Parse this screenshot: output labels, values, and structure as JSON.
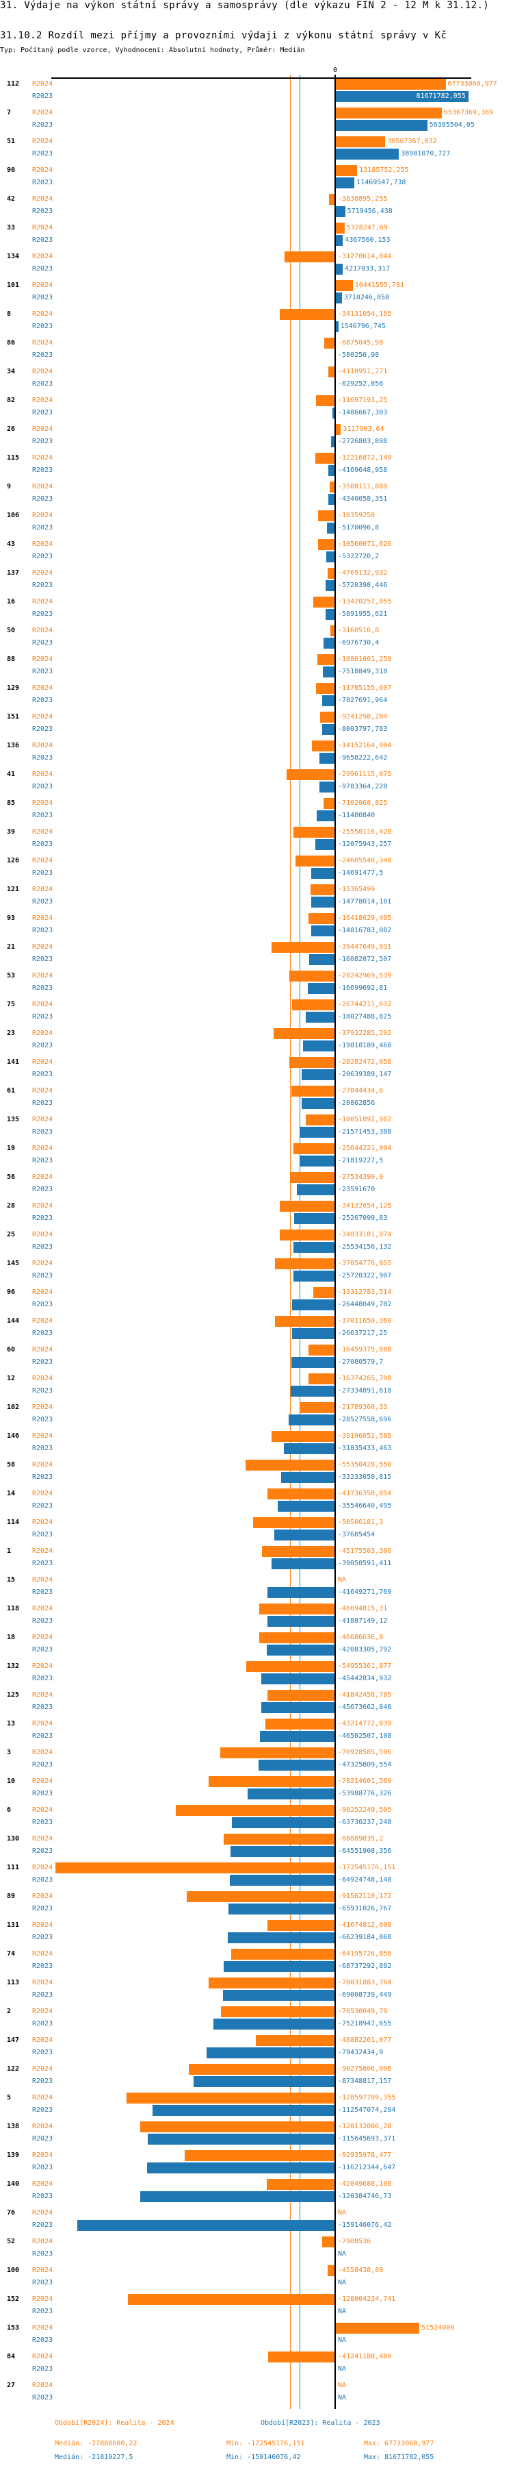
{
  "title": "31. Výdaje na výkon státní správy a samosprávy (dle výkazu FIN 2 - 12 M k 31.12.)",
  "subtitle": "31.10.2 Rozdíl mezi příjmy a provozními výdaji z výkonu státní správy v Kč",
  "typ": "Typ: Počítaný podle vzorce, Vyhodnocení: Absolutní hodnoty, Průměr: Medián",
  "colors": {
    "R2024": "#ff7f0e",
    "R2023": "#1f77b4"
  },
  "chart_data": {
    "type": "bar",
    "orientation": "horizontal",
    "zero_label": "0",
    "series": [
      {
        "name": "R2024",
        "color": "#ff7f0e"
      },
      {
        "name": "R2023",
        "color": "#1f77b4"
      }
    ],
    "na_label": "NA",
    "rows": [
      [
        "112",
        "67733060,977",
        "81671782,055"
      ],
      [
        "7",
        "65367369,369",
        "56385504,05"
      ],
      [
        "51",
        "30567367,032",
        "38901070,727"
      ],
      [
        "90",
        "13185752,255",
        "11469547,738"
      ],
      [
        "42",
        "-3838895,255",
        "5719456,438"
      ],
      [
        "33",
        "5328247,69",
        "4367560,153"
      ],
      [
        "134",
        "-31270614,044",
        "4217033,317"
      ],
      [
        "101",
        "10441555,781",
        "3710246,058"
      ],
      [
        "8",
        "-34131054,165",
        "1546796,745"
      ],
      [
        "86",
        "-6875045,98",
        "-580250,98"
      ],
      [
        "34",
        "-4110951,771",
        "-629252,856"
      ],
      [
        "82",
        "-11697193,25",
        "-1486667,303"
      ],
      [
        "26",
        "3117903,64",
        "-2726803,898"
      ],
      [
        "115",
        "-12216872,149",
        "-4169648,958"
      ],
      [
        "9",
        "-3508111,889",
        "-4340058,351"
      ],
      [
        "106",
        "-10359250",
        "-5170096,8"
      ],
      [
        "43",
        "-10560071,626",
        "-5322720,2"
      ],
      [
        "137",
        "-4769132,932",
        "-5720398,446"
      ],
      [
        "16",
        "-13420257,055",
        "-5891955,621"
      ],
      [
        "50",
        "-3160516,8",
        "-6976730,4"
      ],
      [
        "88",
        "-10801001,259",
        "-7518849,318"
      ],
      [
        "129",
        "-11785155,607",
        "-7827691,964"
      ],
      [
        "151",
        "-9241298,284",
        "-8003797,783"
      ],
      [
        "136",
        "-14152164,904",
        "-9658222,642"
      ],
      [
        "41",
        "-29961115,075",
        "-9783364,228"
      ],
      [
        "85",
        "-7102068,825",
        "-11480840"
      ],
      [
        "39",
        "-25550116,428",
        "-12075943,257"
      ],
      [
        "126",
        "-24605540,348",
        "-14691477,5"
      ],
      [
        "121",
        "-15365499",
        "-14778014,181"
      ],
      [
        "93",
        "-16418629,495",
        "-14816783,082"
      ],
      [
        "21",
        "-39447649,931",
        "-16082072,507"
      ],
      [
        "53",
        "-28242969,539",
        "-16699692,81"
      ],
      [
        "75",
        "-26744211,632",
        "-18027488,825"
      ],
      [
        "23",
        "-37932285,292",
        "-19810189,468"
      ],
      [
        "141",
        "-28282472,058",
        "-20639389,147"
      ],
      [
        "61",
        "-27044434,6",
        "-20862856"
      ],
      [
        "135",
        "-18051092,982",
        "-21571453,388"
      ],
      [
        "19",
        "-25644221,094",
        "-21819227,5"
      ],
      [
        "56",
        "-27534390,9",
        "-23591670"
      ],
      [
        "28",
        "-34132654,125",
        "-25267099,83"
      ],
      [
        "25",
        "-34033101,974",
        "-25534156,132"
      ],
      [
        "145",
        "-37054776,955",
        "-25720322,907"
      ],
      [
        "96",
        "-13312783,514",
        "-26448049,782"
      ],
      [
        "144",
        "-37011650,369",
        "-26637217,25"
      ],
      [
        "60",
        "-16459375,888",
        "-27080579,7"
      ],
      [
        "12",
        "-16374265,708",
        "-27334891,618"
      ],
      [
        "102",
        "-21789360,33",
        "-28527558,696"
      ],
      [
        "146",
        "-39196052,585",
        "-31835433,463"
      ],
      [
        "58",
        "-55350428,558",
        "-33233050,815"
      ],
      [
        "14",
        "-41736350,054",
        "-35546640,495"
      ],
      [
        "114",
        "-50506181,3",
        "-37605454"
      ],
      [
        "1",
        "-45175503,306",
        "-39050591,411"
      ],
      [
        "15",
        null,
        "-41649271,769"
      ],
      [
        "118",
        "-46694815,31",
        "-41887149,12"
      ],
      [
        "18",
        "-46686636,8",
        "-42083305,792"
      ],
      [
        "132",
        "-54955361,877",
        "-45442834,932"
      ],
      [
        "125",
        "-41842458,785",
        "-45673662,848"
      ],
      [
        "13",
        "-43214772,039",
        "-46502507,108"
      ],
      [
        "3",
        "-70928585,596",
        "-47325809,554"
      ],
      [
        "10",
        "-78214601,569",
        "-53988776,326"
      ],
      [
        "6",
        "-98252249,505",
        "-63736237,248"
      ],
      [
        "130",
        "-68889835,2",
        "-64551908,356"
      ],
      [
        "111",
        "-172545176,151",
        "-64924748,148"
      ],
      [
        "89",
        "-91562110,172",
        "-65931026,767"
      ],
      [
        "131",
        "-41674812,609",
        "-66239184,868"
      ],
      [
        "74",
        "-64195726,858",
        "-68737292,892"
      ],
      [
        "113",
        "-78031883,764",
        "-69008739,449"
      ],
      [
        "2",
        "-70530049,79",
        "-75218947,655"
      ],
      [
        "147",
        "-48882261,077",
        "-79432434,9"
      ],
      [
        "122",
        "-90275806,096",
        "-87348817,157"
      ],
      [
        "5",
        "-128597709,355",
        "-112547074,294"
      ],
      [
        "138",
        "-120132086,28",
        "-115645693,371"
      ],
      [
        "139",
        "-92935978,477",
        "-116212344,647"
      ],
      [
        "140",
        "-42049688,108",
        "-120384746,73"
      ],
      [
        "76",
        null,
        "-159146076,42"
      ],
      [
        "52",
        "-7908536",
        null
      ],
      [
        "100",
        "-4558438,89",
        null
      ],
      [
        "152",
        "-128004234,741",
        null
      ],
      [
        "153",
        "51524000",
        null
      ],
      [
        "84",
        "-41241188,489",
        null
      ],
      [
        "27",
        null,
        null
      ]
    ],
    "medians": {
      "R2024": "-27888680,22",
      "R2023": "-21819227,5"
    }
  },
  "legend": {
    "r2024": "Období[R2024]: Realita - 2024",
    "r2023": "Období[R2023]: Realita - 2023"
  },
  "stats": {
    "r2024": {
      "median": "Medián: -27888680,22",
      "min": "Min: -172545176,151",
      "max": "Max: 67733060,977"
    },
    "r2023": {
      "median": "Medián: -21819227,5",
      "min": "Min: -159146076,42",
      "max": "Max: 81671782,055"
    }
  }
}
